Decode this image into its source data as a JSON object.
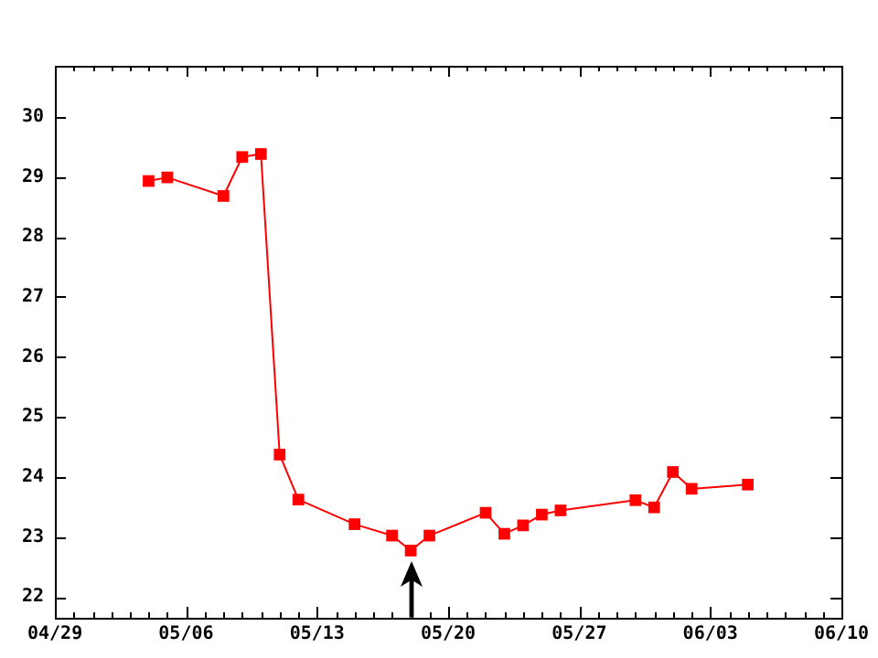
{
  "chart_data": {
    "type": "line",
    "x": [
      "--05-04",
      "--05-05",
      "--05-08",
      "--05-09",
      "--05-10",
      "--05-11",
      "--05-12",
      "--05-15",
      "--05-17",
      "--05-18",
      "--05-19",
      "--05-22",
      "--05-23",
      "--05-24",
      "--05-25",
      "--05-26",
      "--05-30",
      "--05-31",
      "--06-01",
      "--06-02",
      "--06-05"
    ],
    "series": [
      {
        "color": "#ff0000",
        "values": [
          28.93,
          28.99,
          28.68,
          29.33,
          29.38,
          24.37,
          23.62,
          23.21,
          23.02,
          22.77,
          23.02,
          23.4,
          23.05,
          23.19,
          23.37,
          23.44,
          23.61,
          23.49,
          24.08,
          23.8,
          23.87
        ]
      }
    ],
    "xlim": [
      "--04-29",
      "--06-10"
    ],
    "xticks": [
      {
        "value": "--04-29",
        "label": "04/29"
      },
      {
        "value": "--05-06",
        "label": "05/06"
      },
      {
        "value": "--05-13",
        "label": "05/13"
      },
      {
        "value": "--05-20",
        "label": "05/20"
      },
      {
        "value": "--05-27",
        "label": "05/27"
      },
      {
        "value": "--06-03",
        "label": "06/03"
      },
      {
        "value": "--06-10",
        "label": "06/10"
      }
    ],
    "ylim": [
      21.65,
      30.85
    ],
    "yticks": [
      22,
      23,
      24,
      25,
      26,
      27,
      28,
      29,
      30
    ],
    "marker": "square",
    "line_style": "solid",
    "grid": false,
    "legend": false
  }
}
